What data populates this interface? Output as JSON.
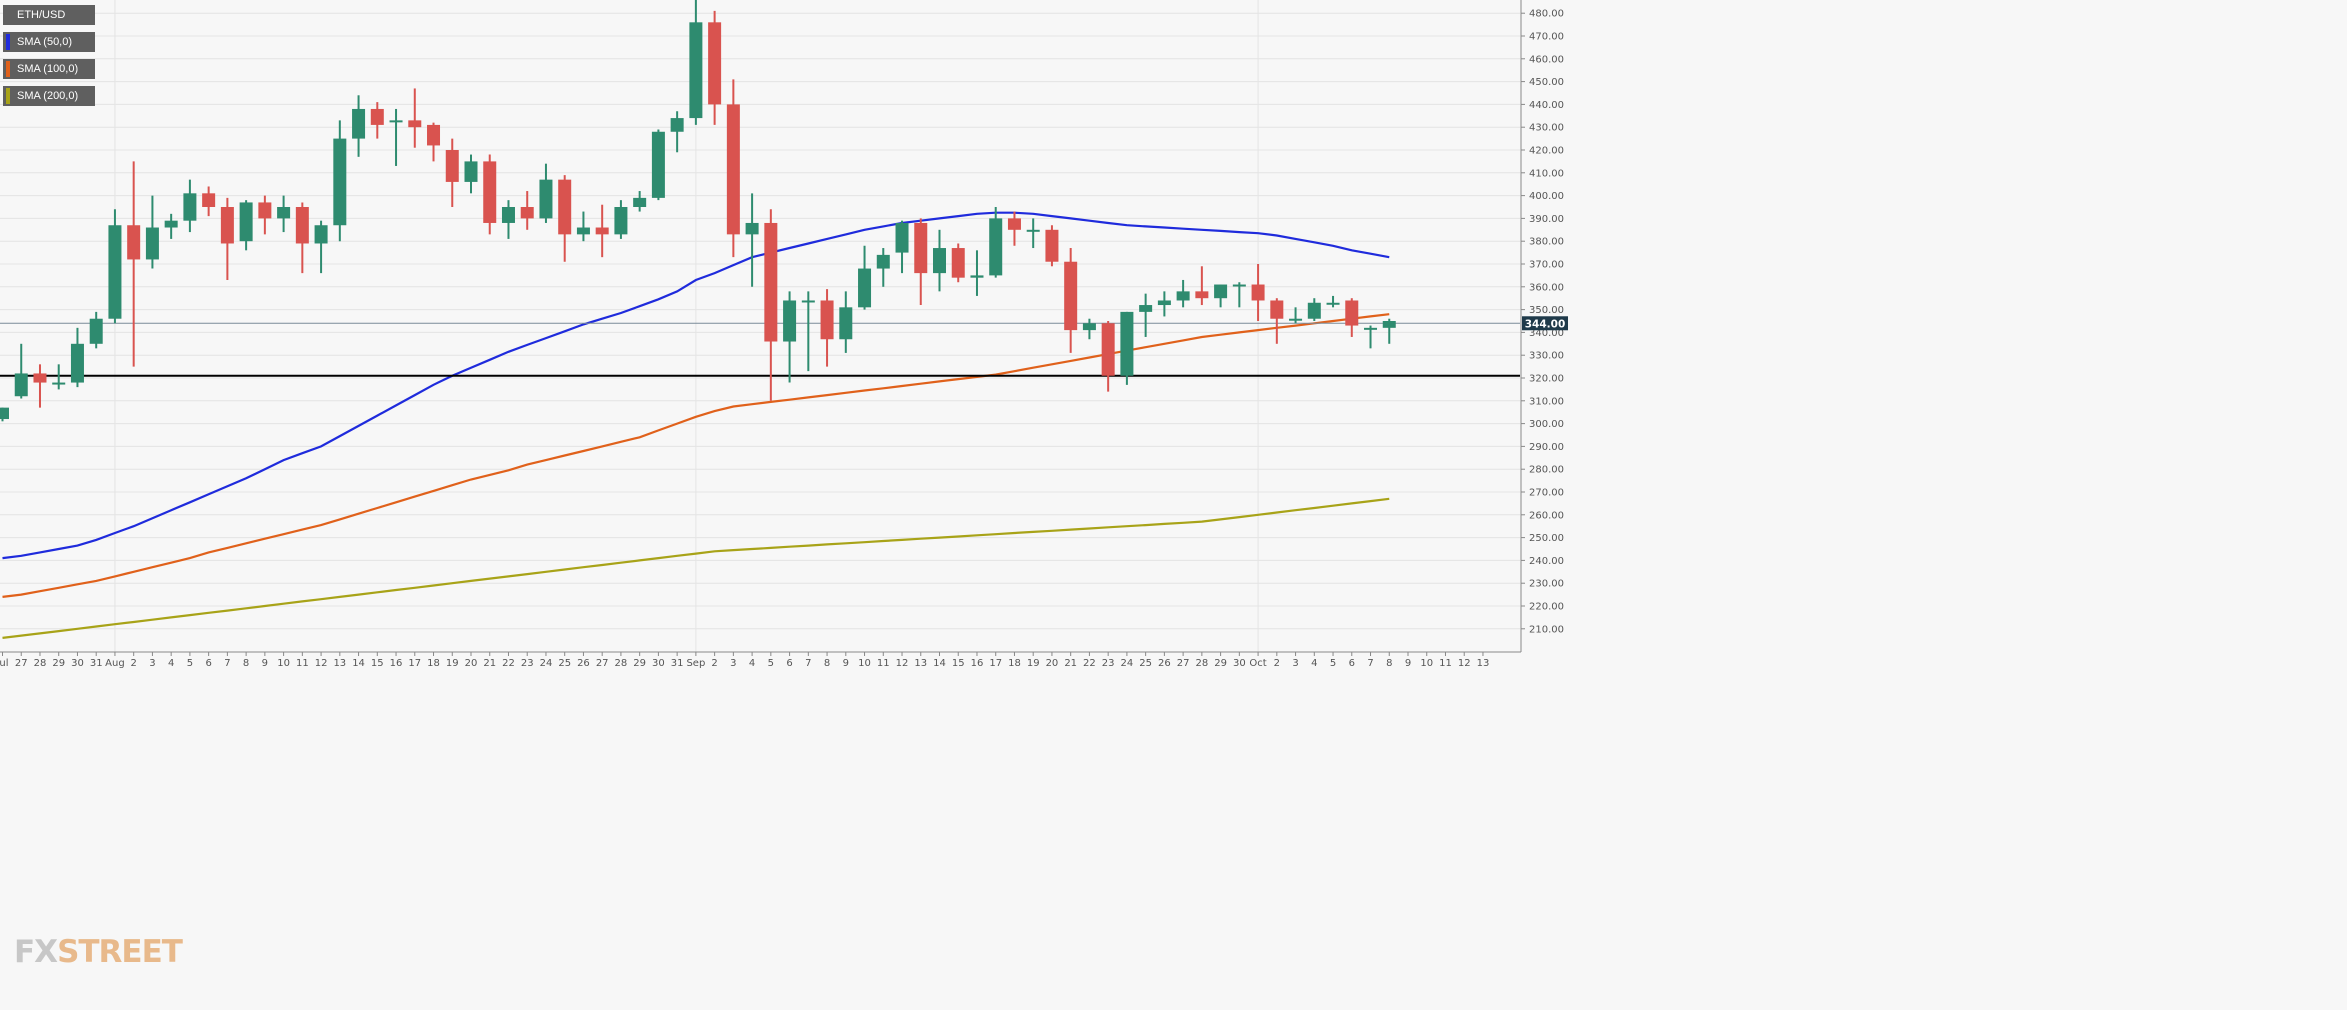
{
  "legend": [
    {
      "label": "ETH/USD",
      "color": "#5f5f5f"
    },
    {
      "label": "SMA (50,0)",
      "color": "#1f2bdc"
    },
    {
      "label": "SMA (100,0)",
      "color": "#e0611b"
    },
    {
      "label": "SMA (200,0)",
      "color": "#a8a318"
    }
  ],
  "logo": {
    "fx": "FX",
    "street": "STREET"
  },
  "chart_data": {
    "type": "candlestick",
    "title": "",
    "xlabel": "",
    "ylabel": "",
    "ylim": [
      200,
      487
    ],
    "y_ticks": [
      210,
      220,
      230,
      240,
      250,
      260,
      270,
      280,
      290,
      300,
      310,
      320,
      330,
      340,
      350,
      360,
      370,
      380,
      390,
      400,
      410,
      420,
      430,
      440,
      450,
      460,
      470,
      480
    ],
    "x_tick_labels": [
      "Jul",
      "27",
      "28",
      "29",
      "30",
      "31",
      "Aug",
      "2",
      "3",
      "4",
      "5",
      "6",
      "7",
      "8",
      "9",
      "10",
      "11",
      "12",
      "13",
      "14",
      "15",
      "16",
      "17",
      "18",
      "19",
      "20",
      "21",
      "22",
      "23",
      "24",
      "25",
      "26",
      "27",
      "28",
      "29",
      "30",
      "31",
      "Sep",
      "2",
      "3",
      "4",
      "5",
      "6",
      "7",
      "8",
      "9",
      "10",
      "11",
      "12",
      "13",
      "14",
      "15",
      "16",
      "17",
      "18",
      "19",
      "20",
      "21",
      "22",
      "23",
      "24",
      "25",
      "26",
      "27",
      "28",
      "29",
      "30",
      "Oct",
      "2",
      "3",
      "4",
      "5",
      "6",
      "7",
      "8",
      "9",
      "10",
      "11",
      "12",
      "13"
    ],
    "grid": true,
    "current_price": 344,
    "current_price_label": "344.00",
    "support_level": 321,
    "colors": {
      "up": "#2e8b6f",
      "down": "#d9534f",
      "price_line": "#7a8b99",
      "support_line": "#000000"
    },
    "candles": [
      {
        "open": 302,
        "high": 307,
        "low": 301,
        "close": 307
      },
      {
        "open": 312,
        "high": 335,
        "low": 311,
        "close": 322
      },
      {
        "open": 322,
        "high": 326,
        "low": 307,
        "close": 318
      },
      {
        "open": 318,
        "high": 326,
        "low": 315,
        "close": 318
      },
      {
        "open": 318,
        "high": 342,
        "low": 316,
        "close": 335
      },
      {
        "open": 335,
        "high": 349,
        "low": 333,
        "close": 346
      },
      {
        "open": 346,
        "high": 394,
        "low": 344,
        "close": 387
      },
      {
        "open": 387,
        "high": 415,
        "low": 325,
        "close": 372
      },
      {
        "open": 372,
        "high": 400,
        "low": 368,
        "close": 386
      },
      {
        "open": 386,
        "high": 392,
        "low": 381,
        "close": 389
      },
      {
        "open": 389,
        "high": 407,
        "low": 384,
        "close": 401
      },
      {
        "open": 401,
        "high": 404,
        "low": 391,
        "close": 395
      },
      {
        "open": 395,
        "high": 399,
        "low": 363,
        "close": 379
      },
      {
        "open": 380,
        "high": 398,
        "low": 376,
        "close": 397
      },
      {
        "open": 397,
        "high": 400,
        "low": 383,
        "close": 390
      },
      {
        "open": 390,
        "high": 400,
        "low": 384,
        "close": 395
      },
      {
        "open": 395,
        "high": 397,
        "low": 366,
        "close": 379
      },
      {
        "open": 379,
        "high": 389,
        "low": 366,
        "close": 387
      },
      {
        "open": 387,
        "high": 433,
        "low": 380,
        "close": 425
      },
      {
        "open": 425,
        "high": 444,
        "low": 417,
        "close": 438
      },
      {
        "open": 438,
        "high": 441,
        "low": 425,
        "close": 431
      },
      {
        "open": 433,
        "high": 438,
        "low": 413,
        "close": 433
      },
      {
        "open": 433,
        "high": 447,
        "low": 421,
        "close": 430
      },
      {
        "open": 431,
        "high": 432,
        "low": 415,
        "close": 422
      },
      {
        "open": 420,
        "high": 425,
        "low": 395,
        "close": 406
      },
      {
        "open": 406,
        "high": 418,
        "low": 401,
        "close": 415
      },
      {
        "open": 415,
        "high": 418,
        "low": 383,
        "close": 388
      },
      {
        "open": 388,
        "high": 398,
        "low": 381,
        "close": 395
      },
      {
        "open": 395,
        "high": 402,
        "low": 385,
        "close": 390
      },
      {
        "open": 390,
        "high": 414,
        "low": 388,
        "close": 407
      },
      {
        "open": 407,
        "high": 409,
        "low": 371,
        "close": 383
      },
      {
        "open": 383,
        "high": 393,
        "low": 380,
        "close": 386
      },
      {
        "open": 386,
        "high": 396,
        "low": 373,
        "close": 383
      },
      {
        "open": 383,
        "high": 398,
        "low": 381,
        "close": 395
      },
      {
        "open": 395,
        "high": 402,
        "low": 393,
        "close": 399
      },
      {
        "open": 399,
        "high": 429,
        "low": 398,
        "close": 428
      },
      {
        "open": 428,
        "high": 437,
        "low": 419,
        "close": 434
      },
      {
        "open": 434,
        "high": 489,
        "low": 431,
        "close": 476
      },
      {
        "open": 476,
        "high": 481,
        "low": 431,
        "close": 440
      },
      {
        "open": 440,
        "high": 451,
        "low": 373,
        "close": 383
      },
      {
        "open": 383,
        "high": 401,
        "low": 360,
        "close": 388
      },
      {
        "open": 388,
        "high": 394,
        "low": 310,
        "close": 336
      },
      {
        "open": 336,
        "high": 358,
        "low": 318,
        "close": 354
      },
      {
        "open": 354,
        "high": 358,
        "low": 323,
        "close": 354
      },
      {
        "open": 354,
        "high": 359,
        "low": 325,
        "close": 337
      },
      {
        "open": 337,
        "high": 358,
        "low": 331,
        "close": 351
      },
      {
        "open": 351,
        "high": 378,
        "low": 350,
        "close": 368
      },
      {
        "open": 368,
        "high": 377,
        "low": 360,
        "close": 374
      },
      {
        "open": 375,
        "high": 389,
        "low": 366,
        "close": 388
      },
      {
        "open": 388,
        "high": 390,
        "low": 352,
        "close": 366
      },
      {
        "open": 366,
        "high": 385,
        "low": 358,
        "close": 377
      },
      {
        "open": 377,
        "high": 379,
        "low": 362,
        "close": 364
      },
      {
        "open": 364,
        "high": 376,
        "low": 356,
        "close": 365
      },
      {
        "open": 365,
        "high": 395,
        "low": 364,
        "close": 390
      },
      {
        "open": 390,
        "high": 393,
        "low": 378,
        "close": 385
      },
      {
        "open": 385,
        "high": 390,
        "low": 377,
        "close": 385
      },
      {
        "open": 385,
        "high": 387,
        "low": 369,
        "close": 371
      },
      {
        "open": 371,
        "high": 377,
        "low": 331,
        "close": 341
      },
      {
        "open": 341,
        "high": 346,
        "low": 337,
        "close": 344
      },
      {
        "open": 344,
        "high": 345,
        "low": 314,
        "close": 321
      },
      {
        "open": 321,
        "high": 349,
        "low": 317,
        "close": 349
      },
      {
        "open": 349,
        "high": 357,
        "low": 338,
        "close": 352
      },
      {
        "open": 352,
        "high": 358,
        "low": 347,
        "close": 354
      },
      {
        "open": 354,
        "high": 363,
        "low": 351,
        "close": 358
      },
      {
        "open": 358,
        "high": 369,
        "low": 352,
        "close": 355
      },
      {
        "open": 355,
        "high": 361,
        "low": 351,
        "close": 361
      },
      {
        "open": 361,
        "high": 362,
        "low": 351,
        "close": 361
      },
      {
        "open": 361,
        "high": 370,
        "low": 345,
        "close": 354
      },
      {
        "open": 354,
        "high": 355,
        "low": 335,
        "close": 346
      },
      {
        "open": 346,
        "high": 351,
        "low": 344,
        "close": 346
      },
      {
        "open": 346,
        "high": 355,
        "low": 345,
        "close": 353
      },
      {
        "open": 353,
        "high": 356,
        "low": 351,
        "close": 353
      },
      {
        "open": 354,
        "high": 355,
        "low": 338,
        "close": 343
      },
      {
        "open": 342,
        "high": 343,
        "low": 333,
        "close": 342
      },
      {
        "open": 342,
        "high": 346,
        "low": 335,
        "close": 345
      }
    ],
    "series": [
      {
        "name": "SMA (50,0)",
        "values": [
          241,
          242,
          243.5,
          245,
          246.5,
          249,
          252,
          255,
          258.5,
          262,
          265.5,
          269,
          272.5,
          276,
          280,
          284,
          287,
          290,
          294.5,
          299,
          303.5,
          308,
          312.5,
          317,
          321,
          324.5,
          328,
          331.5,
          334.5,
          337.5,
          340.5,
          343.5,
          346,
          348.5,
          351.5,
          354.5,
          358,
          363,
          366,
          369.5,
          373,
          375,
          377,
          379,
          381,
          383,
          385,
          386.5,
          388,
          389,
          390,
          391,
          392,
          392.5,
          392.5,
          392,
          391,
          390,
          389,
          388,
          387,
          386.5,
          386,
          385.5,
          385,
          384.5,
          384,
          383.5,
          382.5,
          381,
          379.5,
          378,
          376,
          374.5,
          373
        ]
      },
      {
        "name": "SMA (100,0)",
        "values": [
          224,
          225,
          226.5,
          228,
          229.5,
          231,
          233,
          235,
          237,
          239,
          241,
          243.5,
          245.5,
          247.5,
          249.5,
          251.5,
          253.5,
          255.5,
          258,
          260.5,
          263,
          265.5,
          268,
          270.5,
          273,
          275.5,
          277.5,
          279.5,
          282,
          284,
          286,
          288,
          290,
          292,
          294,
          297,
          300,
          303,
          305.5,
          307.5,
          308.5,
          309.5,
          310.5,
          311.5,
          312.5,
          313.5,
          314.5,
          315.5,
          316.5,
          317.5,
          318.5,
          319.5,
          320.5,
          321.5,
          323,
          324.5,
          326,
          327.5,
          329,
          330.5,
          332,
          333.5,
          335,
          336.5,
          338,
          339,
          340,
          341,
          342,
          343,
          344,
          345,
          346,
          347,
          348
        ]
      },
      {
        "name": "SMA (200,0)",
        "values": [
          206,
          207,
          208,
          209,
          210,
          211,
          212,
          213,
          214,
          215,
          216,
          217,
          218,
          219,
          220,
          221,
          222,
          223,
          224,
          225,
          226,
          227,
          228,
          229,
          230,
          231,
          232,
          233,
          234,
          235,
          236,
          237,
          238,
          239,
          240,
          241,
          242,
          243,
          244,
          244.5,
          245,
          245.5,
          246,
          246.5,
          247,
          247.5,
          248,
          248.5,
          249,
          249.5,
          250,
          250.5,
          251,
          251.5,
          252,
          252.5,
          253,
          253.5,
          254,
          254.5,
          255,
          255.5,
          256,
          256.5,
          257,
          258,
          259,
          260,
          261,
          262,
          263,
          264,
          265,
          266,
          267
        ]
      }
    ]
  }
}
